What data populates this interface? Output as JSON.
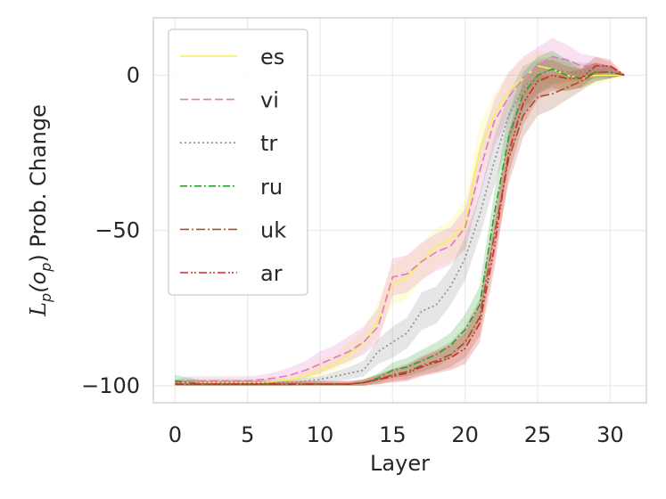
{
  "chart_data": {
    "type": "line",
    "title": "",
    "xlabel": "Layer",
    "ylabel": "\\mathcal{L}_p(o_p) Prob. Change",
    "ylabel_parts": {
      "main": "L",
      "sub1": "p",
      "paren_open": "(o",
      "sub2": "p",
      "rest": ") Prob. Change"
    },
    "xlim": [
      -1.5,
      32.5
    ],
    "ylim": [
      -105.5,
      18.5
    ],
    "xticks": [
      0,
      5,
      10,
      15,
      20,
      25,
      30
    ],
    "xtick_labels": [
      "0",
      "5",
      "10",
      "15",
      "20",
      "25",
      "30"
    ],
    "yticks": [
      0,
      -50,
      -100
    ],
    "ytick_labels": [
      "0",
      "−50",
      "−100"
    ],
    "grid": true,
    "legend_position": "upper-left",
    "x": [
      0,
      1,
      2,
      3,
      4,
      5,
      6,
      7,
      8,
      9,
      10,
      11,
      12,
      13,
      14,
      15,
      16,
      17,
      18,
      19,
      20,
      21,
      22,
      23,
      24,
      25,
      26,
      27,
      28,
      29,
      30,
      31
    ],
    "series": [
      {
        "name": "es",
        "color": "#f5f25a",
        "dash": "",
        "values": [
          -99,
          -99,
          -99,
          -99,
          -99,
          -99,
          -99,
          -98.5,
          -98,
          -97,
          -95,
          -93,
          -90,
          -86,
          -79,
          -67,
          -65,
          -60,
          -55,
          -53,
          -48,
          -24,
          -13,
          -5,
          -1,
          3,
          2,
          0,
          -1,
          0,
          0,
          0
        ],
        "lower": [
          -100,
          -100,
          -100,
          -100,
          -100,
          -100,
          -100,
          -99.5,
          -99,
          -98.5,
          -97,
          -95,
          -93,
          -89,
          -84,
          -74,
          -72,
          -66,
          -62,
          -60,
          -56,
          -33,
          -21,
          -11,
          -6,
          -3,
          -3,
          -4,
          -4,
          -3,
          -2,
          0
        ],
        "upper": [
          -98,
          -98,
          -98,
          -98,
          -98,
          -98,
          -98,
          -97.5,
          -96.5,
          -95,
          -92,
          -90,
          -86,
          -82,
          -73,
          -61,
          -58,
          -54,
          -49,
          -47,
          -40,
          -16,
          -6,
          1,
          5,
          8,
          7,
          4,
          3,
          3,
          2,
          0
        ]
      },
      {
        "name": "vi",
        "color": "#e377c2",
        "dash": "9,4",
        "values": [
          -99,
          -98.5,
          -98.5,
          -98.5,
          -98.5,
          -98.5,
          -98,
          -97.5,
          -96.5,
          -95,
          -93,
          -91,
          -89,
          -86,
          -81,
          -65,
          -64,
          -60,
          -57,
          -55,
          -49,
          -31,
          -15,
          -7,
          -1,
          3,
          6,
          5,
          3,
          3,
          1,
          0
        ],
        "lower": [
          -100,
          -100,
          -100,
          -100,
          -100,
          -100,
          -99.5,
          -99,
          -98.5,
          -97.5,
          -96,
          -94,
          -92,
          -90,
          -86,
          -71,
          -70,
          -66,
          -63,
          -61,
          -56,
          -39,
          -23,
          -14,
          -6,
          -2,
          0,
          1,
          -1,
          0,
          -1,
          0
        ],
        "upper": [
          -98,
          -97,
          -97,
          -97,
          -97,
          -97,
          -96.5,
          -95.5,
          -94,
          -92,
          -89,
          -87,
          -84,
          -81,
          -75,
          -59,
          -58,
          -54,
          -51,
          -49,
          -43,
          -23,
          -8,
          1,
          6,
          9,
          12,
          10,
          7,
          6,
          4,
          0
        ]
      },
      {
        "name": "tr",
        "color": "#8c8c8c",
        "dash": "2,3",
        "values": [
          -99,
          -99,
          -99,
          -99,
          -99,
          -99,
          -99,
          -99,
          -99,
          -98.5,
          -98,
          -97,
          -96,
          -95,
          -89,
          -86,
          -83,
          -76,
          -74,
          -68,
          -59,
          -45,
          -28,
          -13,
          -4,
          0,
          2,
          1,
          1,
          2,
          1,
          0
        ],
        "lower": [
          -100,
          -100,
          -100,
          -100,
          -100,
          -100,
          -100,
          -100,
          -100,
          -99.5,
          -99,
          -98.5,
          -98,
          -97,
          -93,
          -91,
          -88,
          -82,
          -80,
          -74,
          -66,
          -52,
          -36,
          -21,
          -11,
          -6,
          -3,
          -2,
          -2,
          -1,
          -1,
          0
        ],
        "upper": [
          -98,
          -98,
          -98,
          -98,
          -98,
          -98,
          -98,
          -98,
          -98,
          -97.5,
          -97,
          -95.5,
          -94,
          -92,
          -85,
          -81,
          -78,
          -70,
          -68,
          -62,
          -52,
          -38,
          -20,
          -6,
          3,
          5,
          6,
          5,
          4,
          4,
          3,
          0
        ]
      },
      {
        "name": "ru",
        "color": "#2ca02c",
        "dash": "8,3,2,3",
        "values": [
          -98.5,
          -99,
          -99.5,
          -99.5,
          -99.5,
          -99.5,
          -99.5,
          -99.5,
          -99.5,
          -99.5,
          -99.5,
          -99.5,
          -99.5,
          -99,
          -97.5,
          -95,
          -94,
          -92,
          -90,
          -87,
          -82,
          -74,
          -45,
          -20,
          -6,
          0,
          2,
          0,
          -1,
          1,
          1,
          0
        ],
        "lower": [
          -99.5,
          -100,
          -100,
          -100,
          -100,
          -100,
          -100,
          -100,
          -100,
          -100,
          -100,
          -100,
          -100,
          -100,
          -99,
          -97.5,
          -97,
          -95.5,
          -94,
          -91,
          -87,
          -80,
          -52,
          -28,
          -13,
          -6,
          -4,
          -5,
          -4,
          -2,
          -1,
          0
        ],
        "upper": [
          -96.5,
          -97.5,
          -98.5,
          -99,
          -99,
          -99,
          -99,
          -99,
          -99,
          -99,
          -99,
          -99,
          -99,
          -98,
          -96,
          -92.5,
          -91,
          -88.5,
          -86,
          -83,
          -77,
          -68,
          -38,
          -12,
          1,
          6,
          8,
          5,
          2,
          4,
          3,
          0
        ]
      },
      {
        "name": "uk",
        "color": "#a0522d",
        "dash": "10,3,2,3",
        "values": [
          -99.5,
          -99.5,
          -99.5,
          -99.5,
          -99.5,
          -99.5,
          -99.5,
          -99.5,
          -99.5,
          -99.5,
          -99.5,
          -99.5,
          -99.5,
          -99,
          -98,
          -96.5,
          -95.5,
          -93.5,
          -92,
          -90,
          -86,
          -78,
          -52,
          -27,
          -13,
          -7,
          -6,
          -4,
          -2,
          1,
          1,
          0
        ],
        "lower": [
          -100,
          -100,
          -100,
          -100,
          -100,
          -100,
          -100,
          -100,
          -100,
          -100,
          -100,
          -100,
          -100,
          -100,
          -99.5,
          -98.5,
          -98,
          -96.5,
          -95.5,
          -94,
          -91,
          -84,
          -59,
          -35,
          -20,
          -13,
          -11,
          -8,
          -5,
          -2,
          -1,
          0
        ],
        "upper": [
          -98.5,
          -98.5,
          -98.5,
          -98.5,
          -98.5,
          -98.5,
          -98.5,
          -98.5,
          -98.5,
          -98.5,
          -98.5,
          -98.5,
          -98.5,
          -98,
          -96.5,
          -94.5,
          -93,
          -90.5,
          -88.5,
          -86,
          -81,
          -72,
          -45,
          -19,
          -6,
          0,
          0,
          1,
          2,
          4,
          3,
          0
        ]
      },
      {
        "name": "ar",
        "color": "#d62728",
        "dash": "9,3,2,2,2,3",
        "values": [
          -99.5,
          -99.5,
          -99.5,
          -99.5,
          -99.5,
          -99.5,
          -99.5,
          -99.5,
          -99.5,
          -99.5,
          -99.5,
          -99.5,
          -99.5,
          -99,
          -98,
          -97,
          -96,
          -94,
          -92.5,
          -91,
          -88,
          -80,
          -56,
          -25,
          -9,
          -2,
          0,
          -1,
          -1,
          3,
          3,
          0
        ],
        "lower": [
          -100,
          -100,
          -100,
          -100,
          -100,
          -100,
          -100,
          -100,
          -100,
          -100,
          -100,
          -100,
          -100,
          -100,
          -99.5,
          -99,
          -98.5,
          -97,
          -96,
          -95,
          -93,
          -86,
          -63,
          -32,
          -16,
          -8,
          -5,
          -5,
          -4,
          0,
          1,
          0
        ],
        "upper": [
          -98.5,
          -98.5,
          -98.5,
          -98.5,
          -98.5,
          -98.5,
          -98.5,
          -98.5,
          -98.5,
          -98.5,
          -98.5,
          -98.5,
          -98.5,
          -98,
          -96.5,
          -95,
          -93.5,
          -91,
          -89,
          -87,
          -83,
          -74,
          -49,
          -18,
          -2,
          4,
          5,
          3,
          2,
          6,
          5,
          0
        ]
      }
    ]
  }
}
